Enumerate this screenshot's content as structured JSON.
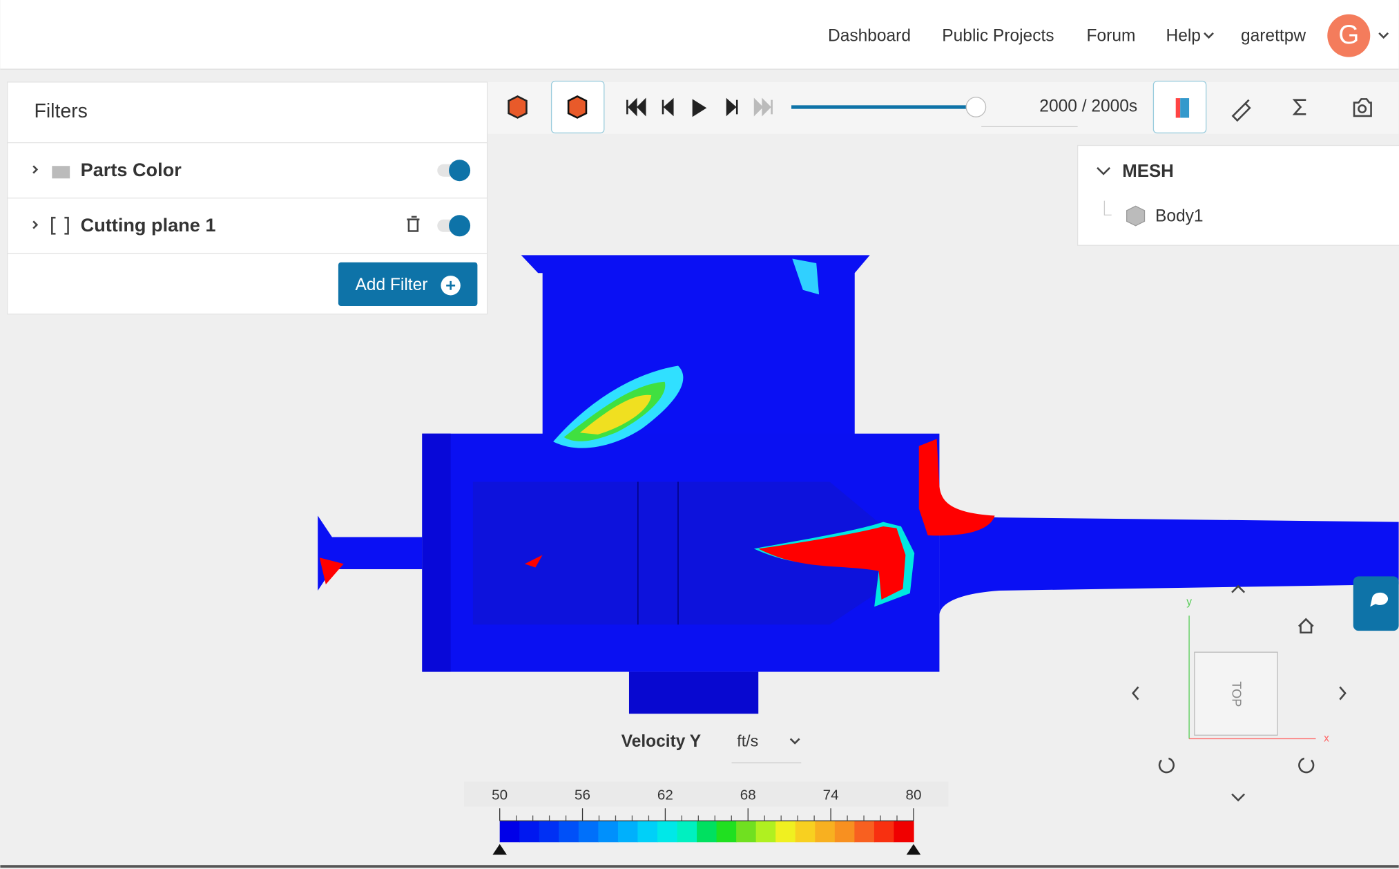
{
  "nav": {
    "links": [
      "Dashboard",
      "Public Projects",
      "Forum",
      "Help"
    ],
    "user": "garettpw",
    "avatar": "G"
  },
  "filters": {
    "title": "Filters",
    "items": [
      "Parts Color",
      "Cutting plane 1"
    ],
    "add_button": "Add Filter"
  },
  "timeline": {
    "time": "2000 / 2000s"
  },
  "tree": {
    "root": "MESH",
    "children": [
      "Body1"
    ]
  },
  "legend": {
    "field": "Velocity Y",
    "unit": "ft/s",
    "ticks": [
      50,
      56,
      62,
      68,
      74,
      80
    ]
  },
  "view_cube": {
    "face": "TOP",
    "axes": [
      "y",
      "x"
    ]
  }
}
